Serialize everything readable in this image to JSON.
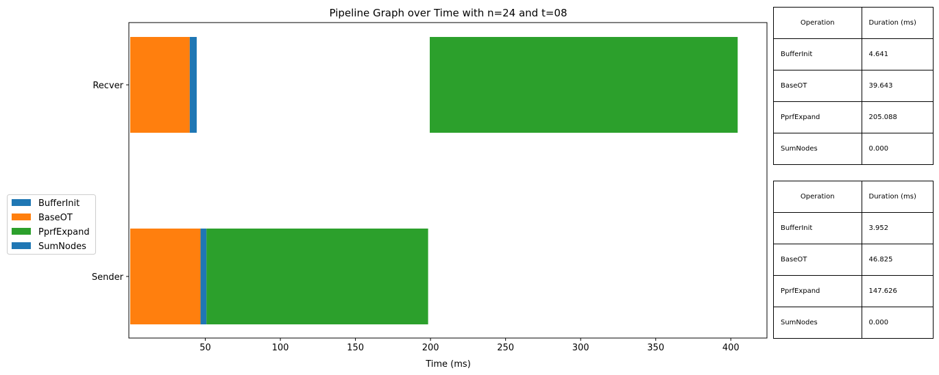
{
  "chart_data": {
    "type": "bar",
    "orientation": "horizontal",
    "title": "Pipeline Graph over Time with n=24 and t=08",
    "xlabel": "Time (ms)",
    "ylabel": "",
    "xlim": [
      0,
      404
    ],
    "xticks": [
      50,
      100,
      150,
      200,
      250,
      300,
      350,
      400
    ],
    "categories": [
      "Recver",
      "Sender"
    ],
    "legend_position": "center-left, outside plot",
    "legend": [
      {
        "label": "BufferInit",
        "color": "#1f77b4"
      },
      {
        "label": "BaseOT",
        "color": "#ff7f0e"
      },
      {
        "label": "PprfExpand",
        "color": "#2ca02c"
      },
      {
        "label": "SumNodes",
        "color": "#1f77b4"
      }
    ],
    "segments": [
      {
        "category": "Recver",
        "operation": "BaseOT",
        "start": 0,
        "duration": 39.643,
        "color": "#ff7f0e"
      },
      {
        "category": "Recver",
        "operation": "BufferInit",
        "start": 39.643,
        "duration": 4.641,
        "color": "#1f77b4"
      },
      {
        "category": "Recver",
        "operation": "PprfExpand",
        "start": 199.5,
        "duration": 205.088,
        "color": "#2ca02c"
      },
      {
        "category": "Sender",
        "operation": "BaseOT",
        "start": 0,
        "duration": 46.825,
        "color": "#ff7f0e"
      },
      {
        "category": "Sender",
        "operation": "BufferInit",
        "start": 46.825,
        "duration": 3.952,
        "color": "#1f77b4"
      },
      {
        "category": "Sender",
        "operation": "PprfExpand",
        "start": 50.777,
        "duration": 147.626,
        "color": "#2ca02c"
      }
    ]
  },
  "tables": [
    {
      "id": "receiver",
      "header": [
        "Operation",
        "Duration (ms)"
      ],
      "rows": [
        [
          "BufferInit",
          "4.641"
        ],
        [
          "BaseOT",
          "39.643"
        ],
        [
          "PprfExpand",
          "205.088"
        ],
        [
          "SumNodes",
          "0.000"
        ]
      ]
    },
    {
      "id": "sender",
      "header": [
        "Operation",
        "Duration (ms)"
      ],
      "rows": [
        [
          "BufferInit",
          "3.952"
        ],
        [
          "BaseOT",
          "46.825"
        ],
        [
          "PprfExpand",
          "147.626"
        ],
        [
          "SumNodes",
          "0.000"
        ]
      ]
    }
  ]
}
